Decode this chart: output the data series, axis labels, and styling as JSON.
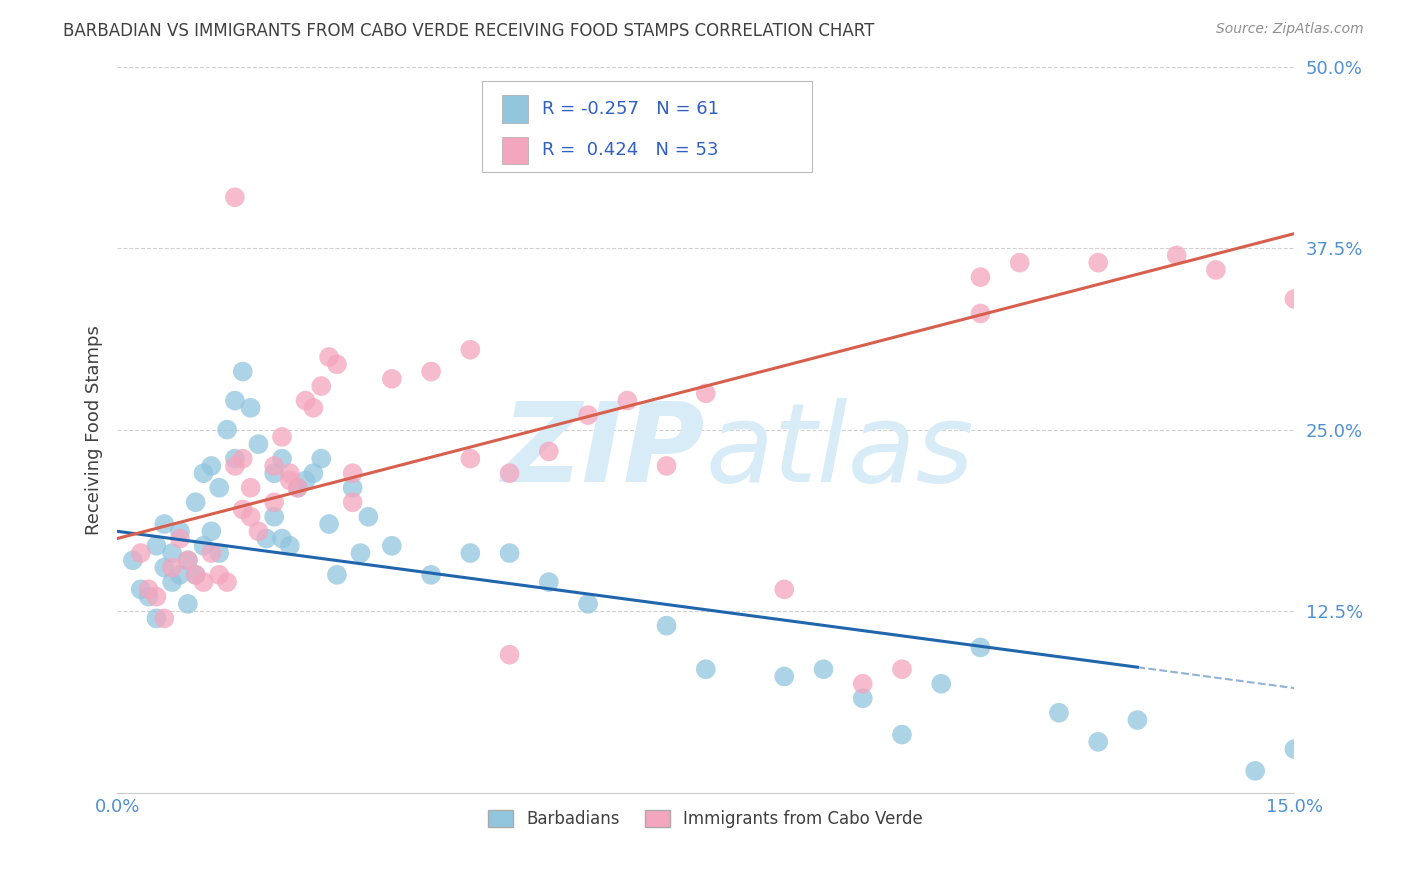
{
  "title": "BARBADIAN VS IMMIGRANTS FROM CABO VERDE RECEIVING FOOD STAMPS CORRELATION CHART",
  "source": "Source: ZipAtlas.com",
  "ylabel": "Receiving Food Stamps",
  "xmin": 0.0,
  "xmax": 15.0,
  "ymin": 0.0,
  "ymax": 50.0,
  "yticks": [
    0,
    12.5,
    25.0,
    37.5,
    50.0
  ],
  "xticks": [
    0.0,
    5.0,
    10.0,
    15.0
  ],
  "xtick_labels": [
    "0.0%",
    "",
    "",
    "15.0%"
  ],
  "ytick_labels": [
    "",
    "12.5%",
    "25.0%",
    "37.5%",
    "50.0%"
  ],
  "series1_name": "Barbadians",
  "series1_color": "#92c5de",
  "series1_line_color": "#2166ac",
  "series1_R": "-0.257",
  "series1_N": "61",
  "series2_name": "Immigrants from Cabo Verde",
  "series2_color": "#f4a6be",
  "series2_line_color": "#d6604d",
  "series2_R": "0.424",
  "series2_N": "53",
  "legend_R_color": "#3060c0",
  "title_color": "#404040",
  "source_color": "#909090",
  "axis_label_color": "#5090d0",
  "grid_color": "#cccccc",
  "background_color": "#ffffff",
  "watermark_color": "#d8ecf8",
  "blue_line_intercept": 18.0,
  "blue_line_slope": -0.72,
  "blue_line_solid_end": 13.0,
  "pink_line_intercept": 17.5,
  "pink_line_slope": 1.4,
  "barbadians_x": [
    0.2,
    0.3,
    0.4,
    0.5,
    0.5,
    0.6,
    0.6,
    0.7,
    0.7,
    0.8,
    0.8,
    0.9,
    0.9,
    1.0,
    1.0,
    1.1,
    1.1,
    1.2,
    1.2,
    1.3,
    1.3,
    1.4,
    1.5,
    1.5,
    1.6,
    1.7,
    1.8,
    1.9,
    2.0,
    2.0,
    2.1,
    2.1,
    2.2,
    2.3,
    2.4,
    2.5,
    2.6,
    2.7,
    2.8,
    3.0,
    3.1,
    3.2,
    3.5,
    4.0,
    4.5,
    5.0,
    5.5,
    6.0,
    7.0,
    7.5,
    8.5,
    9.0,
    9.5,
    10.0,
    10.5,
    11.0,
    12.0,
    12.5,
    13.0,
    14.5,
    15.0
  ],
  "barbadians_y": [
    16.0,
    14.0,
    13.5,
    17.0,
    12.0,
    15.5,
    18.5,
    16.5,
    14.5,
    18.0,
    15.0,
    16.0,
    13.0,
    20.0,
    15.0,
    22.0,
    17.0,
    22.5,
    18.0,
    21.0,
    16.5,
    25.0,
    27.0,
    23.0,
    29.0,
    26.5,
    24.0,
    17.5,
    22.0,
    19.0,
    23.0,
    17.5,
    17.0,
    21.0,
    21.5,
    22.0,
    23.0,
    18.5,
    15.0,
    21.0,
    16.5,
    19.0,
    17.0,
    15.0,
    16.5,
    16.5,
    14.5,
    13.0,
    11.5,
    8.5,
    8.0,
    8.5,
    6.5,
    4.0,
    7.5,
    10.0,
    5.5,
    3.5,
    5.0,
    1.5,
    3.0
  ],
  "caboverde_x": [
    0.3,
    0.4,
    0.5,
    0.6,
    0.7,
    0.8,
    0.9,
    1.0,
    1.1,
    1.2,
    1.3,
    1.4,
    1.5,
    1.6,
    1.7,
    1.8,
    2.0,
    2.1,
    2.2,
    2.3,
    2.4,
    2.5,
    2.6,
    2.7,
    2.8,
    3.0,
    3.5,
    4.0,
    4.5,
    5.0,
    5.5,
    6.0,
    7.0,
    8.5,
    9.5,
    10.0,
    11.0,
    11.5,
    12.5,
    13.5,
    14.0,
    15.0,
    1.5,
    1.6,
    1.7,
    2.0,
    2.2,
    3.0,
    4.5,
    5.0,
    6.5,
    7.5,
    11.0
  ],
  "caboverde_y": [
    16.5,
    14.0,
    13.5,
    12.0,
    15.5,
    17.5,
    16.0,
    15.0,
    14.5,
    16.5,
    15.0,
    14.5,
    22.5,
    23.0,
    21.0,
    18.0,
    22.5,
    24.5,
    22.0,
    21.0,
    27.0,
    26.5,
    28.0,
    30.0,
    29.5,
    22.0,
    28.5,
    29.0,
    30.5,
    22.0,
    23.5,
    26.0,
    22.5,
    14.0,
    7.5,
    8.5,
    35.5,
    36.5,
    36.5,
    37.0,
    36.0,
    34.0,
    41.0,
    19.5,
    19.0,
    20.0,
    21.5,
    20.0,
    23.0,
    9.5,
    27.0,
    27.5,
    33.0
  ]
}
